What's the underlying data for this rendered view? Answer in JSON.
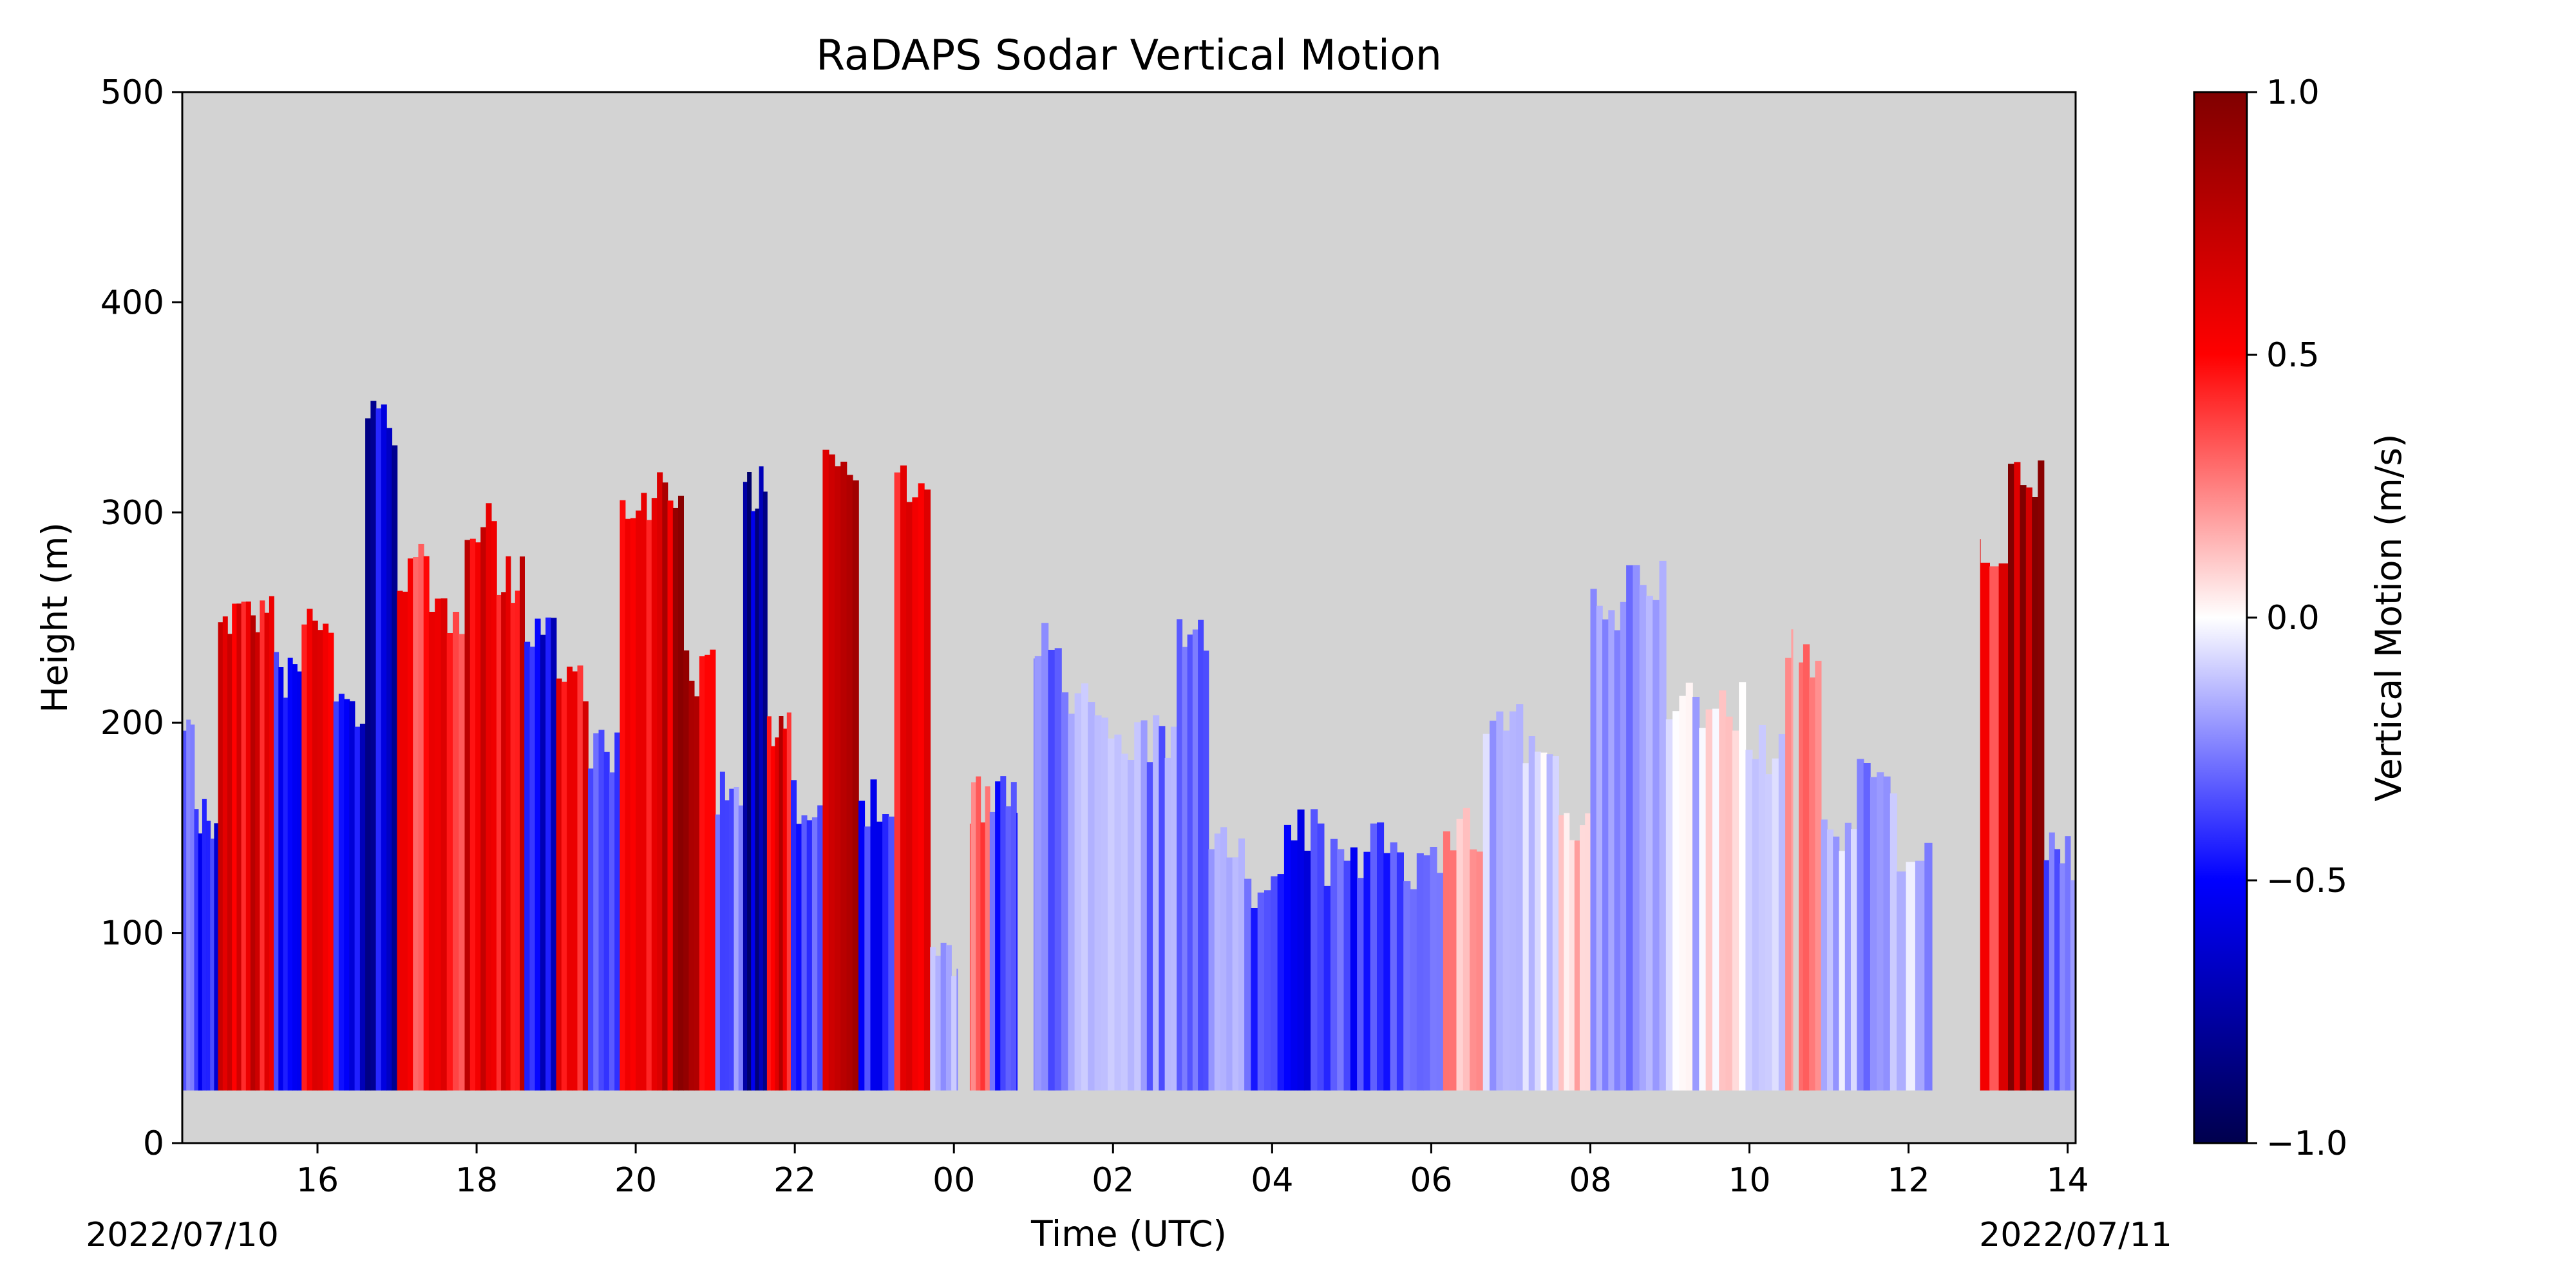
{
  "chart_data": {
    "type": "heatmap",
    "title": "RaDAPS Sodar Vertical Motion",
    "xlabel": "Time (UTC)",
    "ylabel": "Height (m)",
    "date_start_label": "2022/07/10",
    "date_end_label": "2022/07/11",
    "x_ticks": [
      "16",
      "18",
      "20",
      "22",
      "00",
      "02",
      "04",
      "06",
      "08",
      "10",
      "12",
      "14"
    ],
    "x_tick_hours": [
      16,
      18,
      20,
      22,
      24,
      26,
      28,
      30,
      32,
      34,
      36,
      38
    ],
    "xlim_hours_since_0000_2022-07-10": [
      14.3,
      38.1
    ],
    "y_ticks": [
      "0",
      "100",
      "200",
      "300",
      "400",
      "500"
    ],
    "y_tick_values": [
      0,
      100,
      200,
      300,
      400,
      500
    ],
    "ylim": [
      0,
      500
    ],
    "colorbar": {
      "label": "Vertical Motion (m/s)",
      "colormap": "seismic",
      "vmin": -1.0,
      "vmax": 1.0,
      "ticks": [
        "−1.0",
        "−0.5",
        "0.0",
        "0.5",
        "1.0"
      ],
      "tick_values": [
        -1.0,
        -0.5,
        0.0,
        0.5,
        1.0
      ]
    },
    "missing_color": "#d3d3d3",
    "lowest_gate_m": 25,
    "data_columns": [
      {
        "hour": 14.3,
        "top_m": 215,
        "w": -0.3
      },
      {
        "hour": 14.6,
        "top_m": 165,
        "w": -0.5
      },
      {
        "hour": 14.9,
        "top_m": 265,
        "w": 0.55
      },
      {
        "hour": 15.3,
        "top_m": 265,
        "w": 0.6
      },
      {
        "hour": 15.6,
        "top_m": 235,
        "w": -0.5
      },
      {
        "hour": 16.0,
        "top_m": 260,
        "w": 0.5
      },
      {
        "hour": 16.4,
        "top_m": 220,
        "w": -0.55
      },
      {
        "hour": 16.8,
        "top_m": 355,
        "w": -0.65
      },
      {
        "hour": 17.2,
        "top_m": 285,
        "w": 0.45
      },
      {
        "hour": 17.6,
        "top_m": 265,
        "w": 0.5
      },
      {
        "hour": 18.1,
        "top_m": 310,
        "w": 0.7
      },
      {
        "hour": 18.4,
        "top_m": 280,
        "w": 0.6
      },
      {
        "hour": 18.8,
        "top_m": 260,
        "w": -0.6
      },
      {
        "hour": 19.2,
        "top_m": 235,
        "w": 0.5
      },
      {
        "hour": 19.6,
        "top_m": 200,
        "w": -0.4
      },
      {
        "hour": 20.0,
        "top_m": 310,
        "w": 0.5
      },
      {
        "hour": 20.4,
        "top_m": 325,
        "w": 0.75
      },
      {
        "hour": 20.8,
        "top_m": 235,
        "w": 0.7
      },
      {
        "hour": 21.2,
        "top_m": 180,
        "w": -0.3
      },
      {
        "hour": 21.5,
        "top_m": 325,
        "w": -0.7
      },
      {
        "hour": 21.8,
        "top_m": 205,
        "w": 0.6
      },
      {
        "hour": 22.1,
        "top_m": 175,
        "w": -0.4
      },
      {
        "hour": 22.6,
        "top_m": 340,
        "w": 0.7
      },
      {
        "hour": 23.0,
        "top_m": 175,
        "w": -0.5
      },
      {
        "hour": 23.5,
        "top_m": 325,
        "w": 0.5
      },
      {
        "hour": 23.9,
        "top_m": 100,
        "w": -0.2
      },
      {
        "hour": 24.3,
        "top_m": 175,
        "w": 0.35
      },
      {
        "hour": 24.6,
        "top_m": 175,
        "w": -0.4
      },
      {
        "hour": 25.1,
        "top_m": 250,
        "w": -0.25
      },
      {
        "hour": 25.6,
        "top_m": 220,
        "w": -0.2
      },
      {
        "hour": 26.1,
        "top_m": 205,
        "w": -0.2
      },
      {
        "hour": 26.6,
        "top_m": 205,
        "w": -0.25
      },
      {
        "hour": 27.0,
        "top_m": 250,
        "w": -0.25
      },
      {
        "hour": 27.4,
        "top_m": 160,
        "w": -0.2
      },
      {
        "hour": 27.9,
        "top_m": 130,
        "w": -0.35
      },
      {
        "hour": 28.4,
        "top_m": 160,
        "w": -0.45
      },
      {
        "hour": 28.9,
        "top_m": 145,
        "w": -0.4
      },
      {
        "hour": 29.4,
        "top_m": 160,
        "w": -0.4
      },
      {
        "hour": 29.9,
        "top_m": 145,
        "w": -0.35
      },
      {
        "hour": 30.4,
        "top_m": 160,
        "w": 0.2
      },
      {
        "hour": 30.9,
        "top_m": 215,
        "w": -0.15
      },
      {
        "hour": 31.4,
        "top_m": 200,
        "w": -0.1
      },
      {
        "hour": 31.8,
        "top_m": 160,
        "w": 0.1
      },
      {
        "hour": 32.2,
        "top_m": 265,
        "w": -0.15
      },
      {
        "hour": 32.7,
        "top_m": 280,
        "w": -0.2
      },
      {
        "hour": 33.2,
        "top_m": 220,
        "w": -0.1
      },
      {
        "hour": 33.7,
        "top_m": 220,
        "w": 0.05
      },
      {
        "hour": 34.2,
        "top_m": 200,
        "w": -0.15
      },
      {
        "hour": 34.7,
        "top_m": 245,
        "w": 0.2
      },
      {
        "hour": 35.1,
        "top_m": 160,
        "w": -0.1
      },
      {
        "hour": 35.6,
        "top_m": 190,
        "w": -0.2
      },
      {
        "hour": 36.1,
        "top_m": 150,
        "w": -0.15
      },
      {
        "hour": 37.0,
        "top_m": 295,
        "w": 0.5
      },
      {
        "hour": 37.5,
        "top_m": 325,
        "w": 0.8
      },
      {
        "hour": 37.9,
        "top_m": 150,
        "w": -0.3
      }
    ],
    "data_gaps_hours": [
      [
        24.05,
        24.2
      ],
      [
        24.8,
        25.0
      ],
      [
        36.3,
        36.9
      ],
      [
        34.55,
        34.62
      ]
    ]
  }
}
